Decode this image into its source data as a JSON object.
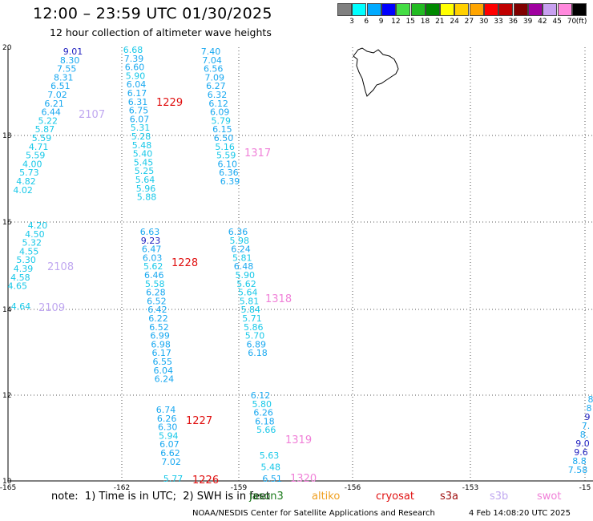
{
  "header": {
    "title": "12:00 – 23:59 UTC 01/30/2025",
    "subtitle": "12 hour collection of altimeter wave heights"
  },
  "legend": {
    "unit": "(ft)",
    "colors": [
      "#808080",
      "#00ffff",
      "#00aaff",
      "#0000ff",
      "#44dd44",
      "#22bb22",
      "#008800",
      "#ffff00",
      "#ffd000",
      "#ffa500",
      "#ff0000",
      "#c00000",
      "#800000",
      "#a000a0",
      "#c8a0f0",
      "#ff88dd",
      "#000000"
    ],
    "labels": [
      "3",
      "6",
      "9",
      "12",
      "15",
      "18",
      "21",
      "24",
      "27",
      "30",
      "33",
      "36",
      "39",
      "42",
      "45",
      "70"
    ]
  },
  "chart_data": {
    "type": "scatter",
    "x_ticks": [
      "-165",
      "-162",
      "-159",
      "-156",
      "-153",
      "-15"
    ],
    "y_ticks": [
      "20",
      "18",
      "16",
      "14",
      "12",
      "10"
    ],
    "grid": true,
    "tracks": [
      {
        "name": "2107",
        "color": "#c0a8f0",
        "values": [
          {
            "t": "9.01",
            "c": "#2020c0"
          },
          {
            "t": "8.30",
            "c": "#18a8f0"
          },
          {
            "t": "7.55",
            "c": "#18a8f0"
          },
          {
            "t": "8.31",
            "c": "#18a8f0"
          },
          {
            "t": "6.51",
            "c": "#18a8f0"
          },
          {
            "t": "7.02",
            "c": "#18a8f0"
          },
          {
            "t": "6.21",
            "c": "#18a8f0"
          },
          {
            "t": "6.44",
            "c": "#18a8f0"
          },
          {
            "t": "5.22",
            "c": "#18c8e8"
          },
          {
            "t": "5.87",
            "c": "#18c8e8"
          },
          {
            "t": "5.59",
            "c": "#18c8e8"
          },
          {
            "t": "4.71",
            "c": "#18c8e8"
          },
          {
            "t": "5.59",
            "c": "#18c8e8"
          },
          {
            "t": "4.00",
            "c": "#18c8e8"
          },
          {
            "t": "5.73",
            "c": "#18c8e8"
          },
          {
            "t": "4.82",
            "c": "#18c8e8"
          },
          {
            "t": "4.02",
            "c": "#18c8e8"
          }
        ]
      },
      {
        "name": "2108",
        "color": "#c0a8f0",
        "values": [
          {
            "t": "4.20",
            "c": "#18c8e8"
          },
          {
            "t": "4.50",
            "c": "#18c8e8"
          },
          {
            "t": "5.32",
            "c": "#18c8e8"
          },
          {
            "t": "4.55",
            "c": "#18c8e8"
          },
          {
            "t": "5.30",
            "c": "#18c8e8"
          },
          {
            "t": "4.39",
            "c": "#18c8e8"
          },
          {
            "t": "4.58",
            "c": "#18c8e8"
          },
          {
            "t": "4.65",
            "c": "#18c8e8"
          }
        ]
      },
      {
        "name": "2109",
        "color": "#c0a8f0",
        "values": [
          {
            "t": "4.64",
            "c": "#18c8e8"
          }
        ]
      },
      {
        "name": "1229",
        "color": "#e01010",
        "values": [
          {
            "t": "6.68",
            "c": "#18c8e8"
          },
          {
            "t": "7.39",
            "c": "#18a8f0"
          },
          {
            "t": "6.60",
            "c": "#18a8f0"
          },
          {
            "t": "5.90",
            "c": "#18c8e8"
          },
          {
            "t": "6.04",
            "c": "#18a8f0"
          },
          {
            "t": "6.17",
            "c": "#18a8f0"
          },
          {
            "t": "6.31",
            "c": "#18a8f0"
          },
          {
            "t": "6.75",
            "c": "#18a8f0"
          },
          {
            "t": "6.07",
            "c": "#18a8f0"
          },
          {
            "t": "5.31",
            "c": "#18c8e8"
          },
          {
            "t": "5.28",
            "c": "#18c8e8"
          },
          {
            "t": "5.48",
            "c": "#18c8e8"
          },
          {
            "t": "5.40",
            "c": "#18c8e8"
          },
          {
            "t": "5.45",
            "c": "#18c8e8"
          },
          {
            "t": "5.25",
            "c": "#18c8e8"
          },
          {
            "t": "5.64",
            "c": "#18c8e8"
          },
          {
            "t": "5.96",
            "c": "#18c8e8"
          },
          {
            "t": "5.88",
            "c": "#18c8e8"
          }
        ]
      },
      {
        "name": "1228",
        "color": "#e01010",
        "values": [
          {
            "t": "6.63",
            "c": "#18a8f0"
          },
          {
            "t": "9.23",
            "c": "#2020c0"
          },
          {
            "t": "6.47",
            "c": "#18a8f0"
          },
          {
            "t": "6.03",
            "c": "#18a8f0"
          },
          {
            "t": "5.62",
            "c": "#18c8e8"
          },
          {
            "t": "6.46",
            "c": "#18a8f0"
          },
          {
            "t": "5.58",
            "c": "#18c8e8"
          },
          {
            "t": "6.28",
            "c": "#18a8f0"
          },
          {
            "t": "6.52",
            "c": "#18a8f0"
          },
          {
            "t": "6.42",
            "c": "#18a8f0"
          },
          {
            "t": "6.22",
            "c": "#18a8f0"
          },
          {
            "t": "6.52",
            "c": "#18a8f0"
          },
          {
            "t": "6.99",
            "c": "#18a8f0"
          },
          {
            "t": "6.98",
            "c": "#18a8f0"
          },
          {
            "t": "6.17",
            "c": "#18a8f0"
          },
          {
            "t": "6.55",
            "c": "#18a8f0"
          },
          {
            "t": "6.04",
            "c": "#18a8f0"
          },
          {
            "t": "6.24",
            "c": "#18a8f0"
          }
        ]
      },
      {
        "name": "1227",
        "color": "#e01010",
        "values": [
          {
            "t": "6.74",
            "c": "#18a8f0"
          },
          {
            "t": "6.26",
            "c": "#18a8f0"
          },
          {
            "t": "6.30",
            "c": "#18a8f0"
          },
          {
            "t": "5.94",
            "c": "#18c8e8"
          },
          {
            "t": "6.07",
            "c": "#18a8f0"
          },
          {
            "t": "6.62",
            "c": "#18a8f0"
          },
          {
            "t": "7.02",
            "c": "#18a8f0"
          }
        ]
      },
      {
        "name": "1226",
        "color": "#e01010",
        "values": [
          {
            "t": "5.77",
            "c": "#18c8e8"
          }
        ]
      },
      {
        "name": "1317",
        "color": "#f080d8",
        "values": [
          {
            "t": "7.40",
            "c": "#18a8f0"
          },
          {
            "t": "7.04",
            "c": "#18a8f0"
          },
          {
            "t": "6.56",
            "c": "#18a8f0"
          },
          {
            "t": "7.09",
            "c": "#18a8f0"
          },
          {
            "t": "6.27",
            "c": "#18a8f0"
          },
          {
            "t": "6.32",
            "c": "#18a8f0"
          },
          {
            "t": "6.12",
            "c": "#18a8f0"
          },
          {
            "t": "6.09",
            "c": "#18a8f0"
          },
          {
            "t": "5.79",
            "c": "#18c8e8"
          },
          {
            "t": "6.15",
            "c": "#18a8f0"
          },
          {
            "t": "6.50",
            "c": "#18a8f0"
          },
          {
            "t": "5.16",
            "c": "#18c8e8"
          },
          {
            "t": "5.59",
            "c": "#18c8e8"
          },
          {
            "t": "6.10",
            "c": "#18a8f0"
          },
          {
            "t": "6.36",
            "c": "#18a8f0"
          },
          {
            "t": "6.39",
            "c": "#18a8f0"
          }
        ]
      },
      {
        "name": "1318",
        "color": "#f080d8",
        "values": [
          {
            "t": "6.36",
            "c": "#18a8f0"
          },
          {
            "t": "5.98",
            "c": "#18c8e8"
          },
          {
            "t": "6.24",
            "c": "#18a8f0"
          },
          {
            "t": "5.81",
            "c": "#18c8e8"
          },
          {
            "t": "6.48",
            "c": "#18a8f0"
          },
          {
            "t": "5.90",
            "c": "#18c8e8"
          },
          {
            "t": "5.62",
            "c": "#18c8e8"
          },
          {
            "t": "5.64",
            "c": "#18c8e8"
          },
          {
            "t": "5.81",
            "c": "#18c8e8"
          },
          {
            "t": "5.84",
            "c": "#18c8e8"
          },
          {
            "t": "5.71",
            "c": "#18c8e8"
          },
          {
            "t": "5.86",
            "c": "#18c8e8"
          },
          {
            "t": "5.70",
            "c": "#18c8e8"
          },
          {
            "t": "6.89",
            "c": "#18a8f0"
          },
          {
            "t": "6.18",
            "c": "#18a8f0"
          }
        ]
      },
      {
        "name": "1319",
        "color": "#f080d8",
        "values": [
          {
            "t": "6.12",
            "c": "#18a8f0"
          },
          {
            "t": "5.80",
            "c": "#18c8e8"
          },
          {
            "t": "6.26",
            "c": "#18a8f0"
          },
          {
            "t": "6.18",
            "c": "#18a8f0"
          },
          {
            "t": "5.66",
            "c": "#18c8e8"
          }
        ]
      },
      {
        "name": "1320",
        "color": "#f080d8",
        "values": [
          {
            "t": "5.63",
            "c": "#18c8e8"
          },
          {
            "t": "5.48",
            "c": "#18c8e8"
          },
          {
            "t": "6.51",
            "c": "#18a8f0"
          }
        ]
      },
      {
        "name": "",
        "color": "#18a8f0",
        "values": [
          {
            "t": "8",
            "c": "#18a8f0"
          },
          {
            "t": "8",
            "c": "#18a8f0"
          },
          {
            "t": "9",
            "c": "#2020c0"
          },
          {
            "t": "7.",
            "c": "#18a8f0"
          },
          {
            "t": "8.",
            "c": "#18a8f0"
          },
          {
            "t": "9.0",
            "c": "#2020c0"
          },
          {
            "t": "9.6",
            "c": "#2020c0"
          },
          {
            "t": "8.8",
            "c": "#18a8f0"
          },
          {
            "t": "7.58",
            "c": "#18a8f0"
          }
        ]
      }
    ]
  },
  "footer": {
    "note": "note:  1) Time is in UTC;  2) SWH is in feet",
    "missions": [
      {
        "name": "jason3",
        "color": "#1a7a1a"
      },
      {
        "name": "altiko",
        "color": "#f0a020"
      },
      {
        "name": "cryosat",
        "color": "#e01010"
      },
      {
        "name": "s3a",
        "color": "#a01010"
      },
      {
        "name": "s3b",
        "color": "#c0a8f0"
      },
      {
        "name": "swot",
        "color": "#f080d8"
      }
    ],
    "credit": "NOAA/NESDIS Center for Satellite Applications and Research",
    "timestamp": "4 Feb 14:08:20 UTC 2025"
  }
}
